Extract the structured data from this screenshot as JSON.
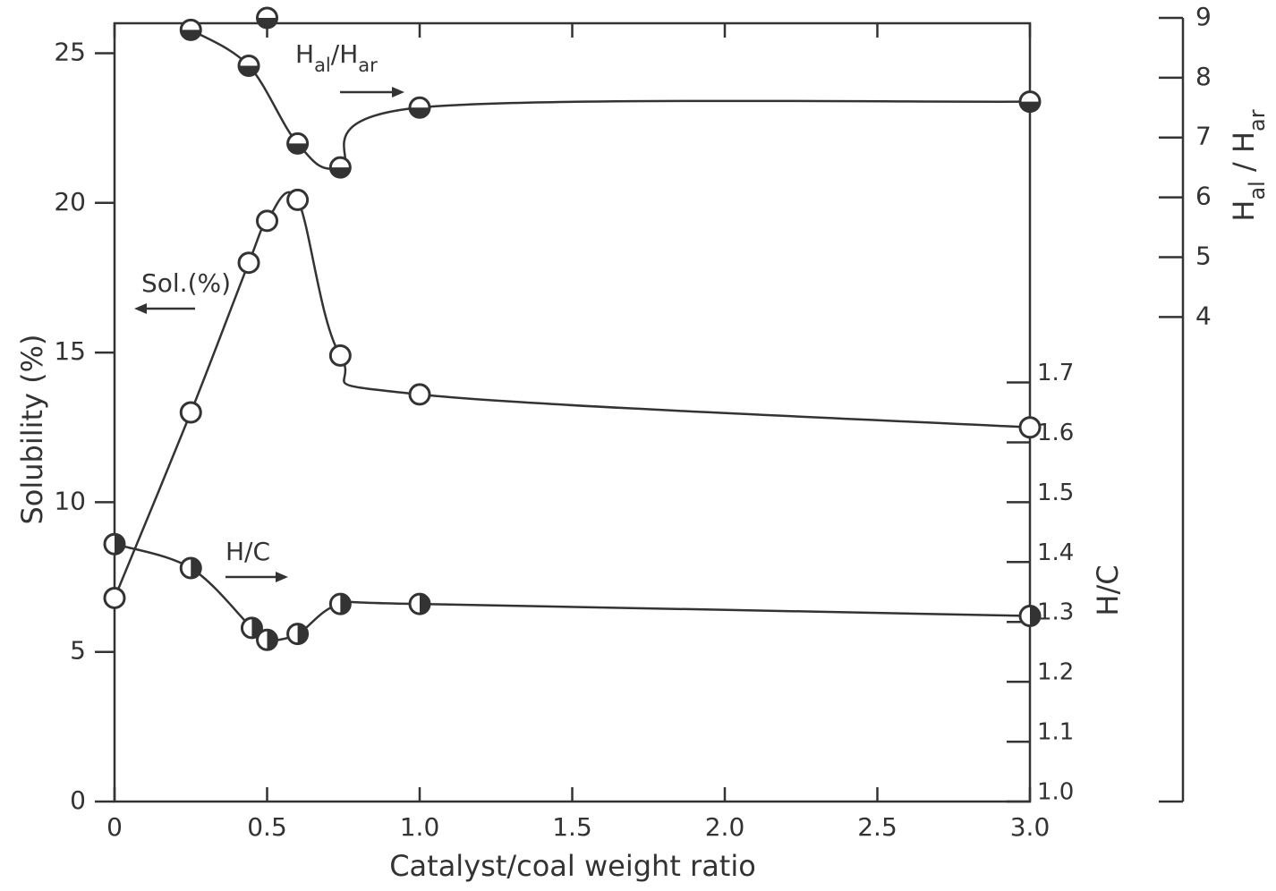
{
  "chart_data": {
    "type": "line",
    "xlabel": "Catalyst/coal weight ratio",
    "ylabel": "Solubility (%)",
    "y2label": "H/C",
    "y3label": [
      {
        "text": "H"
      },
      {
        "text": "al",
        "sub": true
      },
      {
        "text": " / "
      },
      {
        "text": "H"
      },
      {
        "text": "ar",
        "sub": true
      }
    ],
    "xlim": [
      0,
      3.0
    ],
    "xticks": [
      0,
      0.5,
      {
        "value": 1,
        "label": "1.0"
      },
      1.5,
      {
        "value": 2,
        "label": "2.0"
      },
      2.5,
      {
        "value": 3,
        "label": "3.0"
      }
    ],
    "ylim": [
      0,
      26
    ],
    "yticks": [
      0,
      5,
      10,
      15,
      20,
      25
    ],
    "y2lim": [
      1.0,
      2.3
    ],
    "y2ticks": [
      {
        "value": 1,
        "label": "1.0"
      },
      1.1,
      1.2,
      1.3,
      1.4,
      1.5,
      1.6,
      1.7
    ],
    "y3lim": [
      -4.1,
      9
    ],
    "y3ticks": [
      4,
      5,
      6,
      7,
      8,
      9
    ],
    "series": [
      {
        "axis": "y",
        "marker": "open",
        "color": "#333",
        "x": [
          0,
          0.25,
          0.44,
          0.5,
          0.6,
          0.74,
          1.0,
          3.0
        ],
        "values": [
          6.8,
          13.0,
          18.0,
          19.4,
          20.1,
          14.9,
          13.6,
          12.5
        ]
      },
      {
        "axis": "y2",
        "marker": "half-right",
        "color": "#333",
        "x": [
          0,
          0.25,
          0.45,
          0.5,
          0.6,
          0.74,
          1.0,
          3.0
        ],
        "values": [
          1.43,
          1.39,
          1.29,
          1.27,
          1.28,
          1.33,
          1.33,
          1.31
        ]
      },
      {
        "axis": "y3",
        "marker": "half-bottom",
        "color": "#333",
        "x": [
          0.25,
          0.44,
          0.6,
          0.74,
          1.0,
          3.0
        ],
        "values": [
          8.8,
          8.2,
          6.9,
          6.5,
          7.5,
          7.6
        ]
      },
      {
        "axis": "y3",
        "marker": "half-bottom-point",
        "color": "#333",
        "x": [
          0.5
        ],
        "values": [
          9.0
        ]
      }
    ],
    "annotations": [
      [
        {
          "text": "H"
        },
        {
          "text": "al",
          "sub": true
        },
        {
          "text": "/"
        },
        {
          "text": "H"
        },
        {
          "text": "ar",
          "sub": true
        }
      ],
      [
        {
          "text": "Sol.(%)"
        }
      ],
      [
        {
          "text": "H/C"
        }
      ]
    ]
  }
}
